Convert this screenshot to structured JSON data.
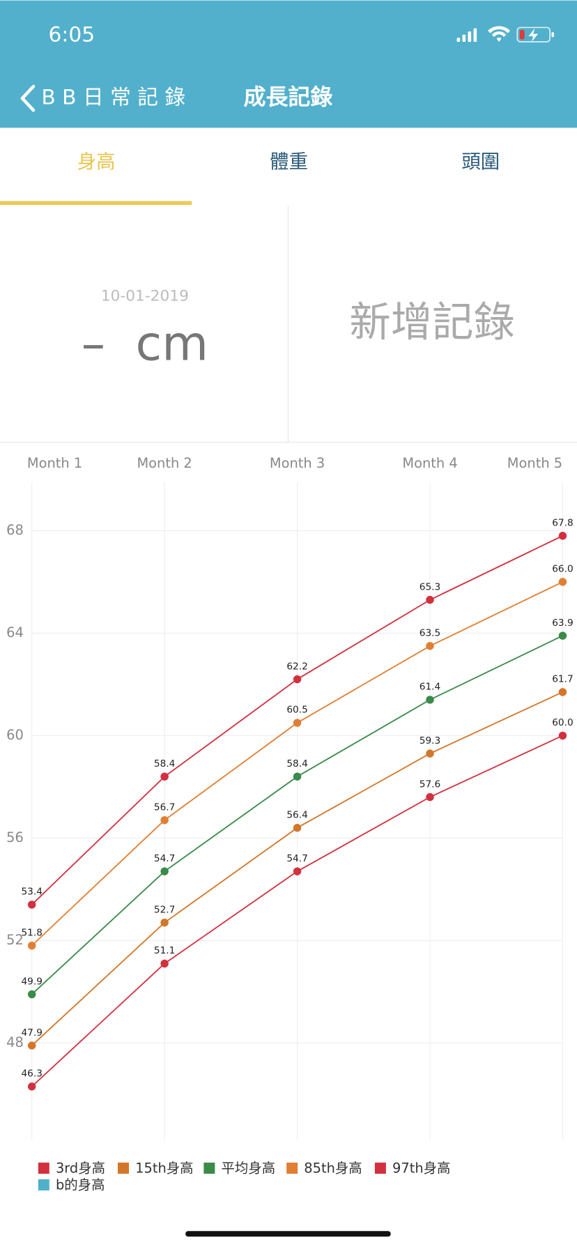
{
  "status_bar": {
    "time": "6:05"
  },
  "nav": {
    "back": "B B 日 常 記 錄",
    "title": "成長記錄"
  },
  "tabs": [
    "身高",
    "體重",
    "頭圍"
  ],
  "summary": {
    "date": "10-01-2019",
    "value": "–  cm",
    "add": "新增記錄"
  },
  "chart_data": {
    "type": "line",
    "categories": [
      "Month 1",
      "Month 2",
      "Month 3",
      "Month 4",
      "Month 5"
    ],
    "ylim": [
      44.2,
      69.9
    ],
    "yticks": [
      48,
      52,
      56,
      60,
      64,
      68
    ],
    "grid": true,
    "legend": "bottom",
    "series": [
      {
        "name": "3rd身高",
        "color": "#d3303f",
        "values": [
          46.3,
          51.1,
          54.7,
          57.6,
          60.0
        ],
        "value_labels": [
          "46.3",
          "51.1",
          "54.7",
          "57.6",
          "60.0"
        ]
      },
      {
        "name": "15th身高",
        "color": "#d3762a",
        "values": [
          47.9,
          52.7,
          56.4,
          59.3,
          61.7
        ],
        "value_labels": [
          "47.9",
          "52.7",
          "56.4",
          "59.3",
          "61.7"
        ]
      },
      {
        "name": "平均身高",
        "color": "#3a8a4a",
        "values": [
          49.9,
          54.7,
          58.4,
          61.4,
          63.9
        ],
        "value_labels": [
          "49.9",
          "54.7",
          "58.4",
          "61.4",
          "63.9"
        ]
      },
      {
        "name": "85th身高",
        "color": "#e07f33",
        "values": [
          51.8,
          56.7,
          60.5,
          63.5,
          66.0
        ],
        "value_labels": [
          "51.8",
          "56.7",
          "60.5",
          "63.5",
          "66.0"
        ]
      },
      {
        "name": "97th身高",
        "color": "#d3303f",
        "values": [
          53.4,
          58.4,
          62.2,
          65.3,
          67.8
        ],
        "value_labels": [
          "53.4",
          "58.4",
          "62.2",
          "65.3",
          "67.8"
        ]
      },
      {
        "name": "b的身高",
        "color": "#4fb0cc",
        "values": [
          null,
          null,
          null,
          null,
          null
        ]
      }
    ]
  }
}
